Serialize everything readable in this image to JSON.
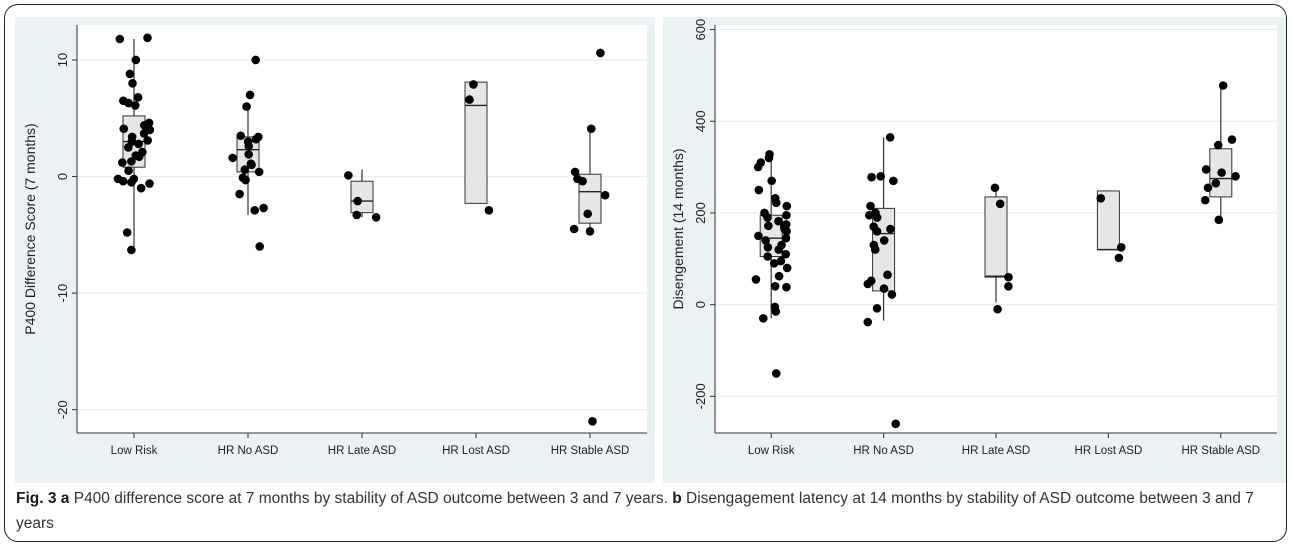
{
  "caption": {
    "label": "Fig. 3",
    "letter_a": "a",
    "text_a": " P400 difference score at 7 months by stability of ASD outcome between 3 and 7 years. ",
    "letter_b": "b",
    "text_b": " Disengagement latency at 14 months by stability of ASD outcome between 3 and 7 years"
  },
  "chart_data": [
    {
      "type": "box",
      "title": "",
      "xlabel": "",
      "ylabel": "P400 Difference Score (7 months)",
      "ylim": [
        -22,
        13
      ],
      "yticks": [
        10,
        0,
        -10,
        -20
      ],
      "grid": true,
      "categories": [
        "Low Risk",
        "HR No ASD",
        "HR Late ASD",
        "HR Lost ASD",
        "HR Stable ASD"
      ],
      "boxes": [
        {
          "q1": 0.8,
          "median": 3.0,
          "q3": 5.2,
          "whisker_low": -6.3,
          "whisker_high": 11.8
        },
        {
          "q1": 0.4,
          "median": 2.3,
          "q3": 3.4,
          "whisker_low": -3.3,
          "whisker_high": 6.0
        },
        {
          "q1": -3.1,
          "median": -2.1,
          "q3": -0.4,
          "whisker_low": -3.5,
          "whisker_high": 0.6
        },
        {
          "q1": -2.3,
          "median": 6.1,
          "q3": 8.1,
          "whisker_low": -2.3,
          "whisker_high": 8.1
        },
        {
          "q1": -4.0,
          "median": -1.3,
          "q3": 0.2,
          "whisker_low": -5.0,
          "whisker_high": 4.1
        }
      ],
      "points": [
        [
          11.9,
          11.8,
          10.0,
          8.8,
          8.0,
          6.8,
          6.5,
          6.3,
          6.1,
          4.6,
          4.4,
          4.1,
          4.0,
          3.7,
          3.4,
          3.1,
          3.0,
          2.8,
          2.5,
          2.1,
          1.8,
          1.7,
          1.3,
          1.2,
          0.5,
          -0.2,
          -0.2,
          -0.4,
          -0.5,
          -0.6,
          -1.0,
          -4.8,
          -6.3
        ],
        [
          10.0,
          7.0,
          6.0,
          3.5,
          3.4,
          3.2,
          3.0,
          2.6,
          1.9,
          1.6,
          1.1,
          1.0,
          0.6,
          0.4,
          -0.1,
          -0.3,
          -1.5,
          -2.7,
          -2.9,
          -6.0
        ],
        [
          0.1,
          -2.1,
          -3.3,
          -3.5
        ],
        [
          7.9,
          6.6,
          -2.9
        ],
        [
          10.6,
          4.1,
          0.4,
          -0.2,
          -0.4,
          -1.6,
          -3.2,
          -4.5,
          -4.7,
          -21.0
        ]
      ]
    },
    {
      "type": "box",
      "title": "",
      "xlabel": "",
      "ylabel": "Disengement (14 months)",
      "ylim": [
        -280,
        610
      ],
      "yticks": [
        600,
        400,
        200,
        0,
        -200
      ],
      "grid": true,
      "categories": [
        "Low Risk",
        "HR No ASD",
        "HR Late ASD",
        "HR Lost ASD",
        "HR Stable ASD"
      ],
      "boxes": [
        {
          "q1": 105,
          "median": 145,
          "q3": 195,
          "whisker_low": -30,
          "whisker_high": 325
        },
        {
          "q1": 30,
          "median": 155,
          "q3": 210,
          "whisker_low": -35,
          "whisker_high": 365
        },
        {
          "q1": 60,
          "median": 62,
          "q3": 235,
          "whisker_low": 5,
          "whisker_high": 255
        },
        {
          "q1": 120,
          "median": 120,
          "q3": 248,
          "whisker_low": 120,
          "whisker_high": 248
        },
        {
          "q1": 235,
          "median": 275,
          "q3": 340,
          "whisker_low": 185,
          "whisker_high": 478
        }
      ],
      "points": [
        [
          328,
          320,
          310,
          300,
          270,
          250,
          232,
          222,
          215,
          200,
          195,
          190,
          182,
          175,
          172,
          170,
          165,
          160,
          150,
          145,
          140,
          130,
          125,
          120,
          110,
          105,
          95,
          90,
          80,
          62,
          55,
          40,
          38,
          -5,
          -15,
          -30,
          -150
        ],
        [
          365,
          280,
          278,
          270,
          215,
          200,
          195,
          190,
          170,
          165,
          160,
          140,
          130,
          120,
          65,
          52,
          45,
          35,
          22,
          -8,
          -38,
          -260
        ],
        [
          255,
          220,
          60,
          40,
          -10
        ],
        [
          232,
          125,
          102
        ],
        [
          478,
          360,
          348,
          295,
          288,
          280,
          265,
          255,
          228,
          185
        ]
      ]
    }
  ]
}
